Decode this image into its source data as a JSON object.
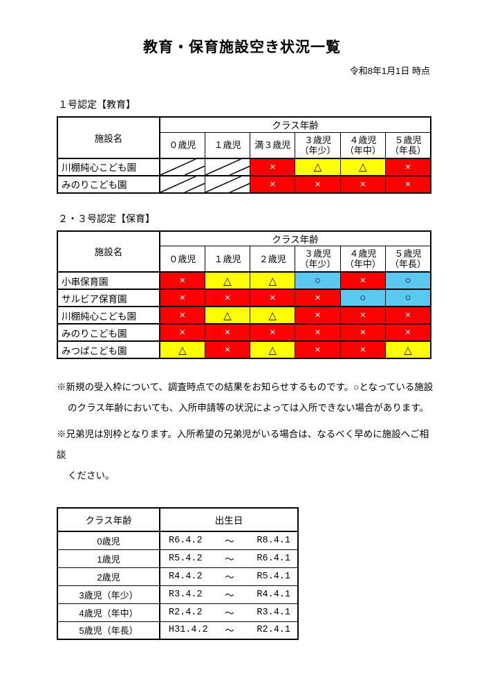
{
  "header": {
    "title": "教育・保育施設空き状況一覧",
    "as_of": "令和8年1月1日 時点"
  },
  "status": {
    "x": {
      "symbol": "×",
      "bg": "#FF0000",
      "fg": "#FFFFFF",
      "meaning": "full"
    },
    "tri": {
      "symbol": "△",
      "bg": "#FFFF00",
      "fg": "#000000",
      "meaning": "few"
    },
    "o": {
      "symbol": "○",
      "bg": "#5BC8F0",
      "fg": "#000000",
      "meaning": "open"
    },
    "na": {
      "symbol": "",
      "bg": "#FFFFFF",
      "fg": "#000000",
      "meaning": "not-applicable"
    }
  },
  "education_table": {
    "section_label": "１号認定【教育】",
    "name_header": "施設名",
    "group_header": "クラス年齢",
    "columns": [
      [
        "０歳児"
      ],
      [
        "１歳児"
      ],
      [
        "満３歳児"
      ],
      [
        "３歳児",
        "（年少）"
      ],
      [
        "４歳児",
        "（年中）"
      ],
      [
        "５歳児",
        "（年長）"
      ]
    ],
    "rows": [
      {
        "name": "川棚純心こども園",
        "cells": [
          "na",
          "na",
          "x",
          "tri",
          "tri",
          "x"
        ]
      },
      {
        "name": "みのりこども園",
        "cells": [
          "na",
          "na",
          "x",
          "x",
          "x",
          "x"
        ]
      }
    ]
  },
  "childcare_table": {
    "section_label": "２・３号認定【保育】",
    "name_header": "施設名",
    "group_header": "クラス年齢",
    "columns": [
      [
        "０歳児"
      ],
      [
        "１歳児"
      ],
      [
        "２歳児"
      ],
      [
        "３歳児",
        "（年少）"
      ],
      [
        "４歳児",
        "（年中）"
      ],
      [
        "５歳児",
        "（年長）"
      ]
    ],
    "rows": [
      {
        "name": "小串保育園",
        "cells": [
          "x",
          "tri",
          "tri",
          "o",
          "x",
          "o"
        ]
      },
      {
        "name": "サルビア保育園",
        "cells": [
          "x",
          "x",
          "x",
          "x",
          "o",
          "o"
        ]
      },
      {
        "name": "川棚純心こども園",
        "cells": [
          "x",
          "tri",
          "tri",
          "x",
          "x",
          "x"
        ]
      },
      {
        "name": "みのりこども園",
        "cells": [
          "x",
          "x",
          "x",
          "x",
          "x",
          "x"
        ]
      },
      {
        "name": "みつばこども園",
        "cells": [
          "tri",
          "x",
          "tri",
          "x",
          "x",
          "tri"
        ]
      }
    ]
  },
  "notes": [
    {
      "lines": [
        "※新規の受入枠について、調査時点での結果をお知らせするものです。○となっている施設",
        "のクラス年齢においても、入所申請等の状況によっては入所できない場合があります。"
      ]
    },
    {
      "lines": [
        "※兄弟児は別枠となります。入所希望の兄弟児がいる場合は、なるべく早めに施設へご相談",
        "ください。"
      ]
    }
  ],
  "birthdate_table": {
    "class_age_header": "クラス年齢",
    "birthdate_header": "出生日",
    "range_separator": "～",
    "rows": [
      {
        "class_age": "0歳児",
        "from": "R6.4.2",
        "to": "R8.4.1"
      },
      {
        "class_age": "1歳児",
        "from": "R5.4.2",
        "to": "R6.4.1"
      },
      {
        "class_age": "2歳児",
        "from": "R4.4.2",
        "to": "R5.4.1"
      },
      {
        "class_age": "3歳児（年少）",
        "from": "R3.4.2",
        "to": "R4.4.1"
      },
      {
        "class_age": "4歳児（年中）",
        "from": "R2.4.2",
        "to": "R3.4.1"
      },
      {
        "class_age": "5歳児（年長）",
        "from": "H31.4.2",
        "to": "R2.4.1"
      }
    ]
  }
}
